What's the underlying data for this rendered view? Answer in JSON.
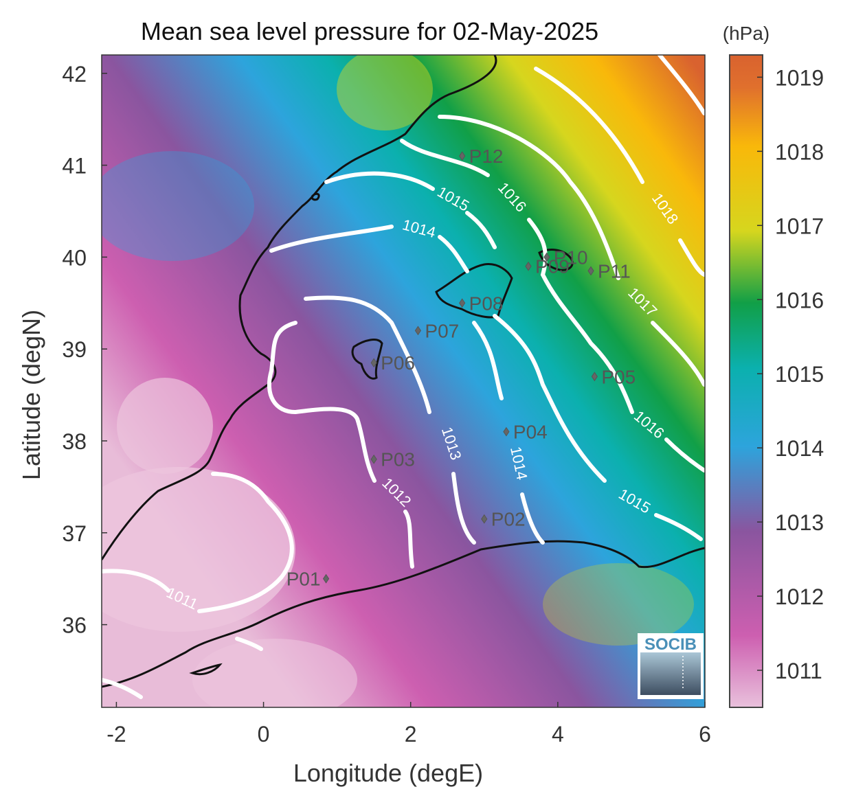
{
  "map": {
    "title": "Mean sea level pressure for 02-May-2025",
    "xlabel": "Longitude (degE)",
    "ylabel": "Latitude (degN)",
    "xticks": [
      "-2",
      "0",
      "2",
      "4",
      "6"
    ],
    "yticks": [
      "42",
      "41",
      "40",
      "39",
      "38",
      "37",
      "36"
    ],
    "extent": {
      "lon": [
        -2.2,
        6.0
      ],
      "lat": [
        35.1,
        42.2
      ]
    },
    "contour_labels": [
      "1011",
      "1012",
      "1013",
      "1014",
      "1014",
      "1015",
      "1015",
      "1016",
      "1016",
      "1017",
      "1018"
    ],
    "contour_color": "#ffffff",
    "coast_color": "#111111"
  },
  "colorbar": {
    "unit": "(hPa)",
    "ticks": [
      "1019",
      "1018",
      "1017",
      "1016",
      "1015",
      "1014",
      "1013",
      "1012",
      "1011"
    ],
    "range": [
      1010.5,
      1019.3
    ],
    "colors": [
      "#e9c1dc",
      "#cd5fb0",
      "#8a559f",
      "#2da4dc",
      "#0bb0ae",
      "#119f47",
      "#d6d61e",
      "#f9b80a",
      "#e0702d",
      "#d9622f"
    ]
  },
  "stations": [
    {
      "name": "P01",
      "lon": 0.85,
      "lat": 36.5
    },
    {
      "name": "P02",
      "lon": 3.0,
      "lat": 37.15
    },
    {
      "name": "P03",
      "lon": 1.5,
      "lat": 37.8
    },
    {
      "name": "P04",
      "lon": 3.3,
      "lat": 38.1
    },
    {
      "name": "P05",
      "lon": 4.5,
      "lat": 38.7
    },
    {
      "name": "P06",
      "lon": 1.5,
      "lat": 38.85
    },
    {
      "name": "P07",
      "lon": 2.1,
      "lat": 39.2
    },
    {
      "name": "P08",
      "lon": 2.7,
      "lat": 39.5
    },
    {
      "name": "P09",
      "lon": 3.6,
      "lat": 39.9
    },
    {
      "name": "P10",
      "lon": 3.85,
      "lat": 40.0
    },
    {
      "name": "P11",
      "lon": 4.45,
      "lat": 39.85
    },
    {
      "name": "P12",
      "lon": 2.7,
      "lat": 41.1
    }
  ],
  "logo": {
    "text": "SOCIB"
  }
}
